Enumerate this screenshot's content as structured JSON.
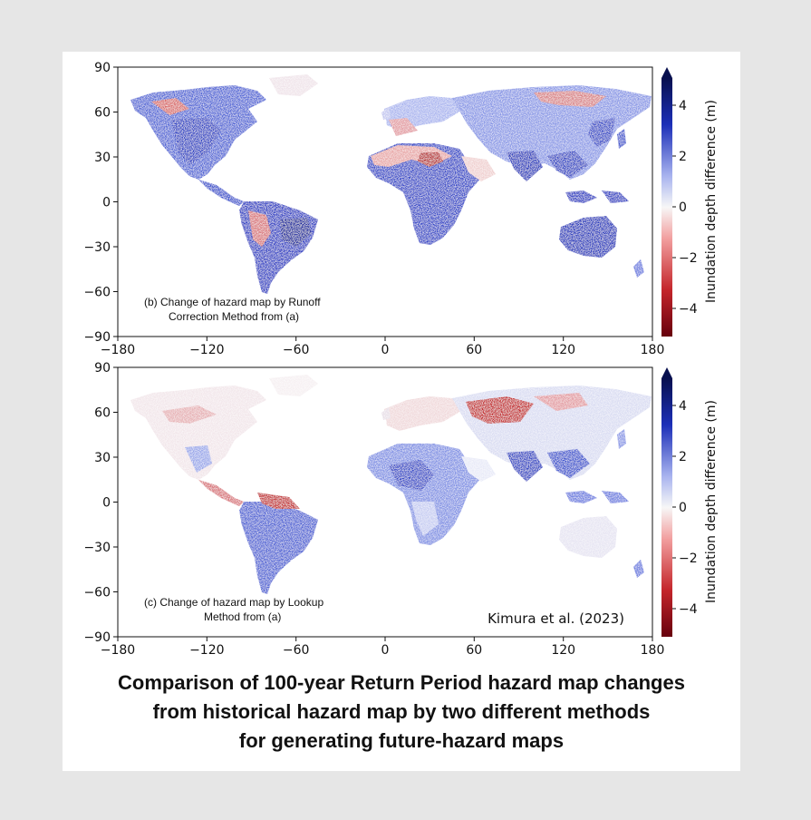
{
  "colors": {
    "positive": "#1c2fb8",
    "negative": "#c4262b",
    "neutral": "#f4f4f4",
    "page_background": "#e6e6e6"
  },
  "map_axes": {
    "x_ticks": [
      "−180",
      "−120",
      "−60",
      "0",
      "60",
      "120",
      "180"
    ],
    "y_ticks": [
      "90",
      "60",
      "30",
      "0",
      "−30",
      "−60",
      "−90"
    ],
    "x_range": [
      -180,
      180
    ],
    "y_range": [
      -90,
      90
    ]
  },
  "colorbar": {
    "label": "Inundation depth difference (m)",
    "ticks": [
      "4",
      "2",
      "0",
      "−2",
      "−4"
    ],
    "range": [
      -5,
      5
    ]
  },
  "panel_b": {
    "annotation_line1": "(b) Change of hazard map by Runoff",
    "annotation_line2": "Correction Method from (a)"
  },
  "panel_c": {
    "annotation_line1": "(c) Change of hazard map by Lookup",
    "annotation_line2": "Method from (a)",
    "credit": "Kimura et al. (2023)"
  },
  "caption": {
    "line1": "Comparison of 100-year Return Period hazard map changes",
    "line2": "from historical hazard map by two different methods",
    "line3": "for generating future-hazard maps"
  }
}
